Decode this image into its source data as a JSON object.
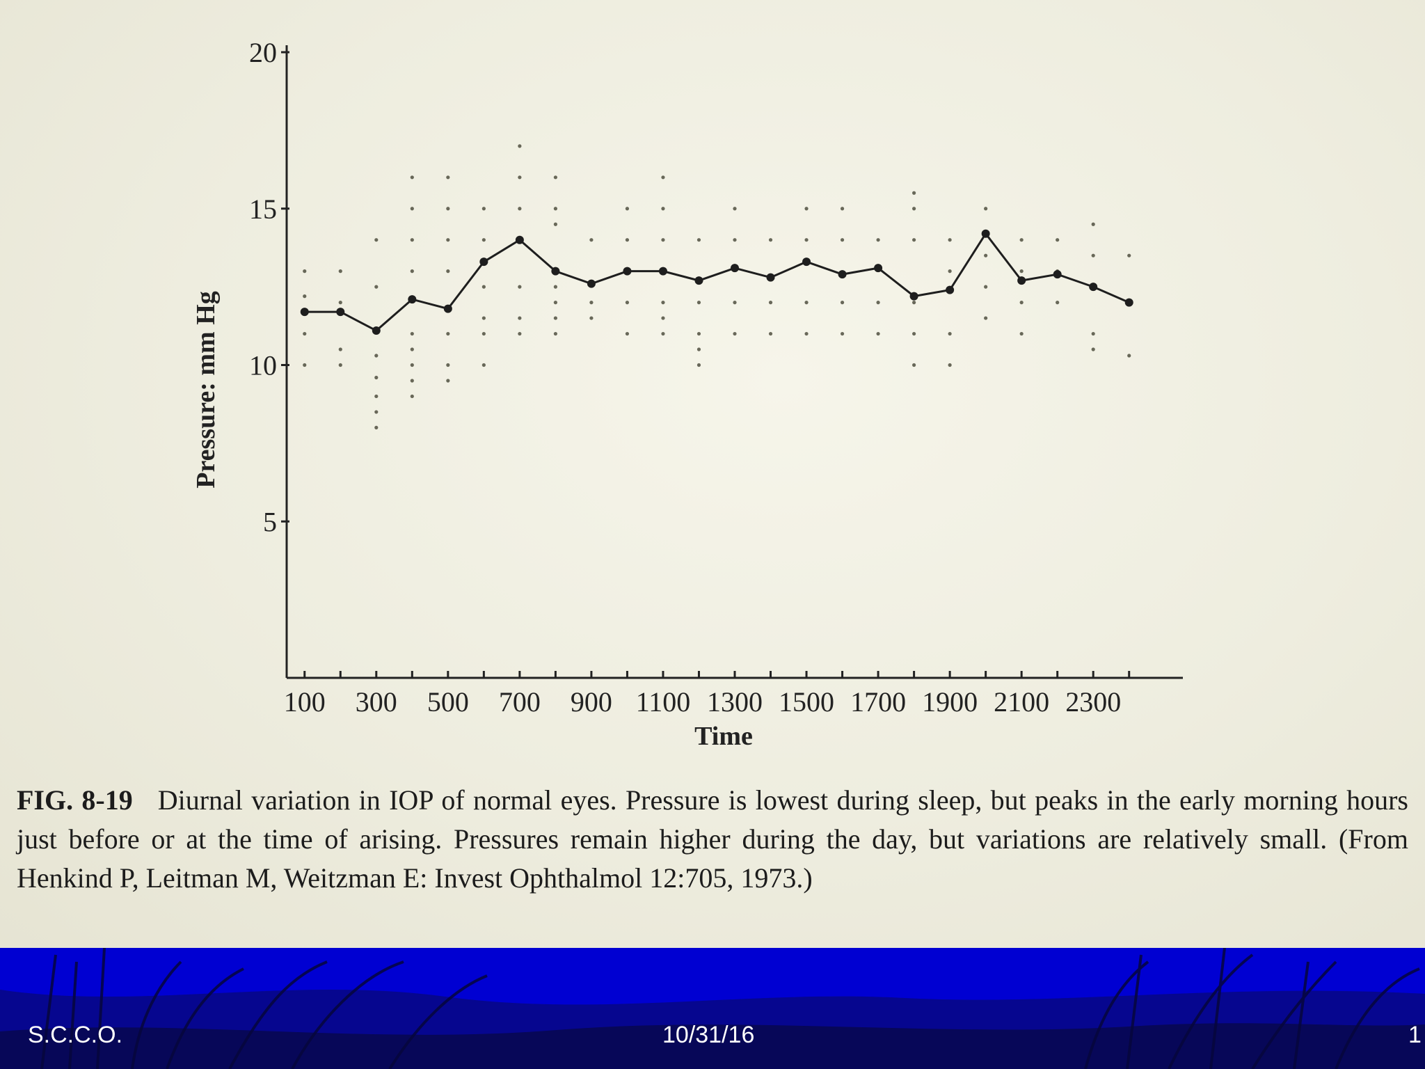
{
  "chart_data": {
    "type": "line",
    "xlabel": "Time",
    "ylabel": "Pressure: mm Hg",
    "x_tick_labels": [
      "100",
      "300",
      "500",
      "700",
      "900",
      "1100",
      "1300",
      "1500",
      "1700",
      "1900",
      "2100",
      "2300"
    ],
    "y_tick_labels": [
      "5",
      "10",
      "15",
      "20"
    ],
    "xlim": [
      -0.5,
      24.5
    ],
    "ylim": [
      0,
      20
    ],
    "x": [
      100,
      200,
      300,
      400,
      500,
      600,
      700,
      800,
      900,
      1000,
      1100,
      1200,
      1300,
      1400,
      1500,
      1600,
      1700,
      1800,
      1900,
      2000,
      2100,
      2200,
      2300,
      2400
    ],
    "series": [
      {
        "values": [
          11.7,
          11.7,
          11.1,
          12.1,
          11.8,
          13.3,
          14.0,
          13.0,
          12.6,
          13.0,
          13.0,
          12.7,
          13.1,
          12.8,
          13.3,
          12.9,
          13.1,
          12.2,
          12.4,
          14.2,
          12.7,
          12.9,
          12.5,
          12.0
        ]
      }
    ],
    "scatter_dots": [
      {
        "x": 100,
        "y": [
          13.0,
          12.2,
          11.0,
          10.0
        ]
      },
      {
        "x": 200,
        "y": [
          13.0,
          12.0,
          10.5,
          10.0
        ]
      },
      {
        "x": 300,
        "y": [
          14.0,
          12.5,
          10.3,
          9.6,
          9.0,
          8.5,
          8.0
        ]
      },
      {
        "x": 400,
        "y": [
          16.0,
          15.0,
          14.0,
          13.0,
          11.0,
          10.5,
          10.0,
          9.5,
          9.0
        ]
      },
      {
        "x": 500,
        "y": [
          16.0,
          15.0,
          14.0,
          13.0,
          11.0,
          10.0,
          9.5
        ]
      },
      {
        "x": 600,
        "y": [
          15.0,
          14.0,
          12.5,
          11.5,
          11.0,
          10.0
        ]
      },
      {
        "x": 700,
        "y": [
          17.0,
          16.0,
          15.0,
          12.5,
          11.5,
          11.0
        ]
      },
      {
        "x": 800,
        "y": [
          16.0,
          15.0,
          14.5,
          12.5,
          12.0,
          11.5,
          11.0
        ]
      },
      {
        "x": 900,
        "y": [
          14.0,
          12.0,
          11.5
        ]
      },
      {
        "x": 1000,
        "y": [
          15.0,
          14.0,
          12.0,
          11.0
        ]
      },
      {
        "x": 1100,
        "y": [
          16.0,
          15.0,
          14.0,
          12.0,
          11.5,
          11.0
        ]
      },
      {
        "x": 1200,
        "y": [
          14.0,
          12.0,
          11.0,
          10.5,
          10.0
        ]
      },
      {
        "x": 1300,
        "y": [
          15.0,
          14.0,
          12.0,
          11.0
        ]
      },
      {
        "x": 1400,
        "y": [
          14.0,
          12.0,
          11.0
        ]
      },
      {
        "x": 1500,
        "y": [
          15.0,
          14.0,
          12.0,
          11.0
        ]
      },
      {
        "x": 1600,
        "y": [
          15.0,
          14.0,
          12.0,
          11.0
        ]
      },
      {
        "x": 1700,
        "y": [
          14.0,
          12.0,
          11.0
        ]
      },
      {
        "x": 1800,
        "y": [
          15.5,
          15.0,
          14.0,
          12.0,
          11.0,
          10.0
        ]
      },
      {
        "x": 1900,
        "y": [
          14.0,
          13.0,
          11.0,
          10.0
        ]
      },
      {
        "x": 2000,
        "y": [
          15.0,
          13.5,
          12.5,
          11.5
        ]
      },
      {
        "x": 2100,
        "y": [
          14.0,
          13.0,
          12.0,
          11.0
        ]
      },
      {
        "x": 2200,
        "y": [
          14.0,
          13.0,
          12.0
        ]
      },
      {
        "x": 2300,
        "y": [
          14.5,
          13.5,
          11.0,
          10.5
        ]
      },
      {
        "x": 2400,
        "y": [
          13.5,
          10.3
        ]
      }
    ],
    "colors": {
      "line": "#1e1e1e",
      "dots": "#3a3a2a",
      "axis": "#222222"
    },
    "grid": false,
    "legend": "none"
  },
  "caption": {
    "label": "FIG. 8-19",
    "text": "Diurnal variation in IOP of normal eyes. Pressure is lowest during sleep, but peaks in the early morning hours just before or at the time of arising. Pressures remain higher during the day, but variations are relatively small. (From Henkind P, Leitman M, Weitzman E: Invest Ophthalmol 12:705, 1973.)"
  },
  "footer": {
    "org": "S.C.C.O.",
    "date": "10/31/16",
    "page": "1",
    "background": "#0000d2"
  }
}
